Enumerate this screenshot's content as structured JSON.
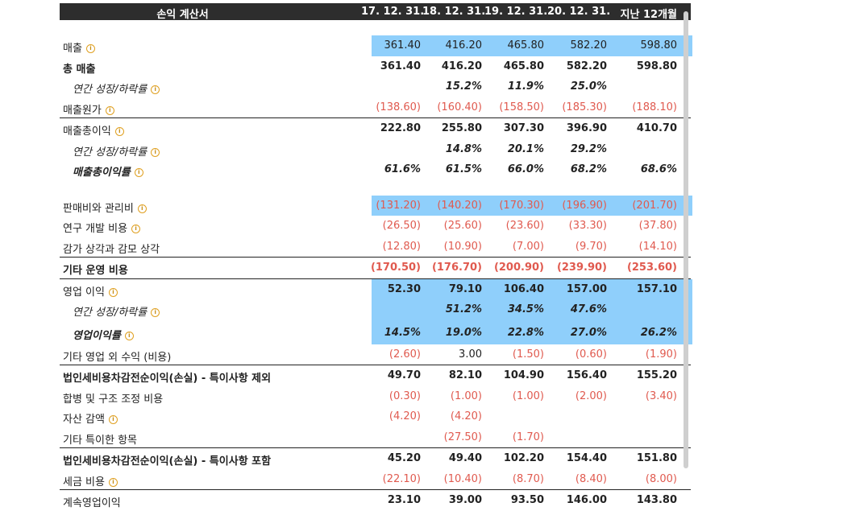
{
  "header": {
    "title": "손익 계산서",
    "columns": [
      "17. 12. 31.",
      "18. 12. 31.",
      "19. 12. 31.",
      "20. 12. 31.",
      "지난 12개월"
    ]
  },
  "rows": {
    "revenue": {
      "label": "매출",
      "v": [
        "361.40",
        "416.20",
        "465.80",
        "582.20",
        "598.80"
      ]
    },
    "total_revenue": {
      "label": "총 매출",
      "v": [
        "361.40",
        "416.20",
        "465.80",
        "582.20",
        "598.80"
      ]
    },
    "rev_growth": {
      "label": "연간 성장/하락률",
      "v": [
        "",
        "15.2%",
        "11.9%",
        "25.0%",
        ""
      ]
    },
    "cogs": {
      "label": "매출원가",
      "v": [
        "(138.60)",
        "(160.40)",
        "(158.50)",
        "(185.30)",
        "(188.10)"
      ]
    },
    "gross_profit": {
      "label": "매출총이익",
      "v": [
        "222.80",
        "255.80",
        "307.30",
        "396.90",
        "410.70"
      ]
    },
    "gp_growth": {
      "label": "연간 성장/하락률",
      "v": [
        "",
        "14.8%",
        "20.1%",
        "29.2%",
        ""
      ]
    },
    "gp_margin": {
      "label": "매출총이익률",
      "v": [
        "61.6%",
        "61.5%",
        "66.0%",
        "68.2%",
        "68.6%"
      ]
    },
    "sga": {
      "label": "판매비와 관리비",
      "v": [
        "(131.20)",
        "(140.20)",
        "(170.30)",
        "(196.90)",
        "(201.70)"
      ]
    },
    "rnd": {
      "label": "연구 개발 비용",
      "v": [
        "(26.50)",
        "(25.60)",
        "(23.60)",
        "(33.30)",
        "(37.80)"
      ]
    },
    "dna": {
      "label": "감가 상각과 감모 상각",
      "v": [
        "(12.80)",
        "(10.90)",
        "(7.00)",
        "(9.70)",
        "(14.10)"
      ]
    },
    "other_opex": {
      "label": "기타 운영 비용",
      "v": [
        "(170.50)",
        "(176.70)",
        "(200.90)",
        "(239.90)",
        "(253.60)"
      ]
    },
    "op_income": {
      "label": "영업 이익",
      "v": [
        "52.30",
        "79.10",
        "106.40",
        "157.00",
        "157.10"
      ]
    },
    "op_growth": {
      "label": "연간 성장/하락률",
      "v": [
        "",
        "51.2%",
        "34.5%",
        "47.6%",
        ""
      ]
    },
    "op_margin": {
      "label": "영업이익률",
      "v": [
        "14.5%",
        "19.0%",
        "22.8%",
        "27.0%",
        "26.2%"
      ]
    },
    "other_nonop": {
      "label": "기타 영업 외 수익 (비용)",
      "v": [
        "(2.60)",
        "3.00",
        "(1.50)",
        "(0.60)",
        "(1.90)"
      ]
    },
    "ebt_excl": {
      "label": "법인세비용차감전순이익(손실) - 특이사항 제외",
      "v": [
        "49.70",
        "82.10",
        "104.90",
        "156.40",
        "155.20"
      ]
    },
    "merger": {
      "label": "합병 및 구조 조정 비용",
      "v": [
        "(0.30)",
        "(1.00)",
        "(1.00)",
        "(2.00)",
        "(3.40)"
      ]
    },
    "impairment": {
      "label": "자산 감액",
      "v": [
        "(4.20)",
        "(4.20)",
        "",
        "",
        ""
      ]
    },
    "other_unusual": {
      "label": "기타 특이한 항목",
      "v": [
        "",
        "(27.50)",
        "(1.70)",
        "",
        ""
      ]
    },
    "ebt_incl": {
      "label": "법인세비용차감전순이익(손실) - 특이사항 포함",
      "v": [
        "45.20",
        "49.40",
        "102.20",
        "154.40",
        "151.80"
      ]
    },
    "tax": {
      "label": "세금 비용",
      "v": [
        "(22.10)",
        "(10.40)",
        "(8.70)",
        "(8.40)",
        "(8.00)"
      ]
    },
    "cont_ops": {
      "label": "계속영업이익",
      "v": [
        "23.10",
        "39.00",
        "93.50",
        "146.00",
        "143.80"
      ]
    }
  },
  "colors": {
    "highlight": "#8fcffb",
    "negative": "#e05a4f",
    "header_bg": "#2d2d2d",
    "info_icon": "#e0a020"
  }
}
